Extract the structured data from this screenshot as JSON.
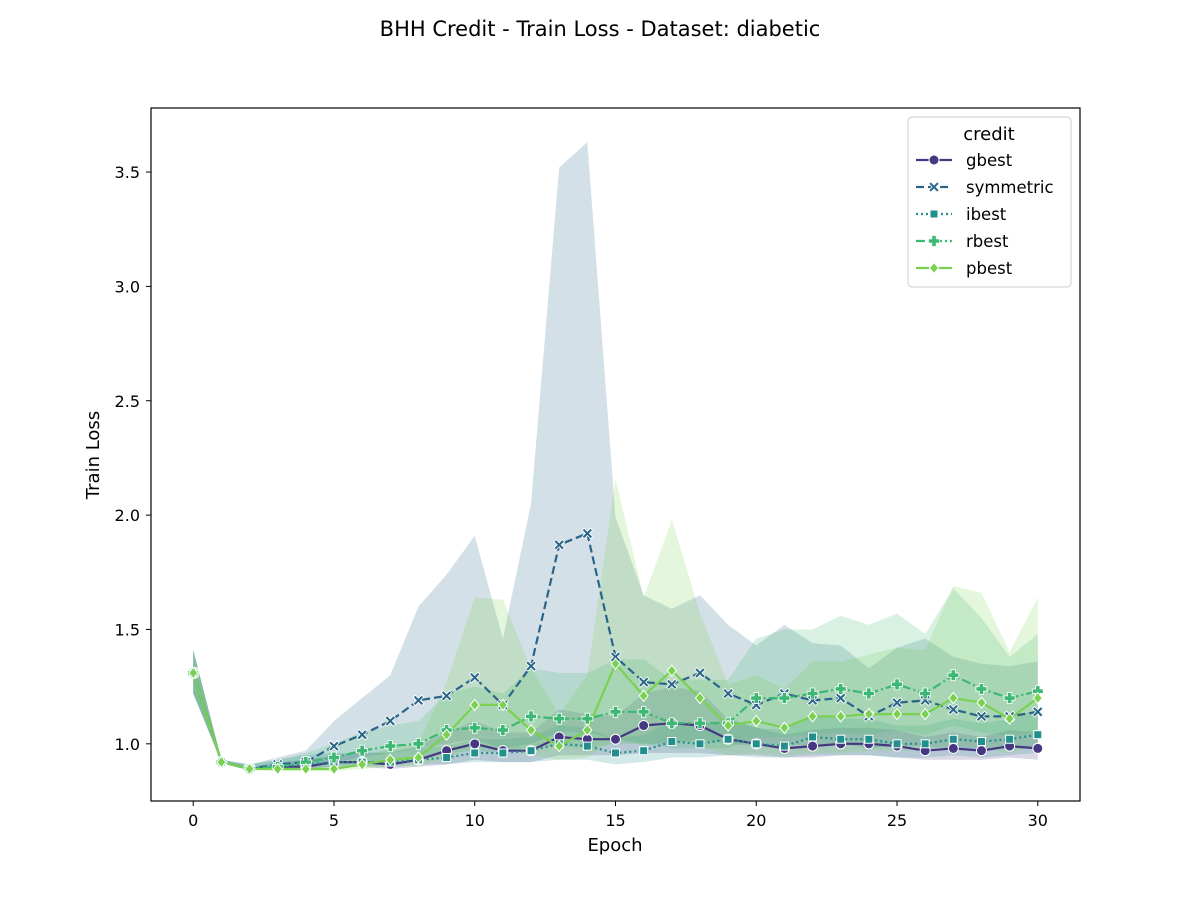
{
  "chart_data": {
    "type": "line",
    "title": "BHH Credit - Train Loss - Dataset: diabetic",
    "xlabel": "Epoch",
    "ylabel": "Train Loss",
    "xlim": [
      -1.5,
      31.5
    ],
    "ylim": [
      0.75,
      3.78
    ],
    "xticks": [
      0,
      5,
      10,
      15,
      20,
      25,
      30
    ],
    "yticks": [
      1.0,
      1.5,
      2.0,
      2.5,
      3.0,
      3.5
    ],
    "xtick_labels": [
      "0",
      "5",
      "10",
      "15",
      "20",
      "25",
      "30"
    ],
    "ytick_labels": [
      "1.0",
      "1.5",
      "2.0",
      "2.5",
      "3.0",
      "3.5"
    ],
    "grid": false,
    "legend": {
      "title": "credit",
      "placement": "top-right"
    },
    "x": [
      0,
      1,
      2,
      3,
      4,
      5,
      6,
      7,
      8,
      9,
      10,
      11,
      12,
      13,
      14,
      15,
      16,
      17,
      18,
      19,
      20,
      21,
      22,
      23,
      24,
      25,
      26,
      27,
      28,
      29,
      30
    ],
    "series": [
      {
        "name": "gbest",
        "color": "#453781",
        "marker": "circle",
        "dash": "solid",
        "values": [
          1.31,
          0.92,
          0.89,
          0.9,
          0.9,
          0.92,
          0.92,
          0.91,
          0.93,
          0.97,
          1.0,
          0.97,
          0.97,
          1.03,
          1.02,
          1.02,
          1.08,
          1.09,
          1.08,
          1.02,
          1.0,
          0.98,
          0.99,
          1.0,
          1.0,
          0.99,
          0.97,
          0.98,
          0.97,
          0.99,
          0.98
        ],
        "lower": [
          1.22,
          0.92,
          0.89,
          0.89,
          0.89,
          0.9,
          0.9,
          0.89,
          0.9,
          0.91,
          0.93,
          0.92,
          0.92,
          0.95,
          0.95,
          0.95,
          0.96,
          0.96,
          0.96,
          0.95,
          0.95,
          0.94,
          0.94,
          0.95,
          0.95,
          0.94,
          0.93,
          0.93,
          0.93,
          0.94,
          0.93
        ],
        "upper": [
          1.41,
          0.93,
          0.9,
          0.92,
          0.93,
          0.95,
          0.96,
          0.96,
          0.99,
          1.05,
          1.1,
          1.05,
          1.05,
          1.15,
          1.13,
          1.12,
          1.22,
          1.25,
          1.23,
          1.11,
          1.07,
          1.04,
          1.06,
          1.07,
          1.07,
          1.06,
          1.03,
          1.05,
          1.03,
          1.06,
          1.05
        ]
      },
      {
        "name": "symmetric",
        "color": "#2a6489",
        "marker": "x",
        "dash": "dashed",
        "values": [
          1.31,
          0.92,
          0.89,
          0.91,
          0.92,
          0.99,
          1.04,
          1.1,
          1.19,
          1.21,
          1.29,
          1.17,
          1.34,
          1.87,
          1.92,
          1.38,
          1.27,
          1.26,
          1.31,
          1.22,
          1.17,
          1.22,
          1.19,
          1.2,
          1.12,
          1.18,
          1.19,
          1.15,
          1.12,
          1.12,
          1.14
        ],
        "lower": [
          1.22,
          0.92,
          0.89,
          0.89,
          0.89,
          0.92,
          0.94,
          0.96,
          0.98,
          1.0,
          1.02,
          0.98,
          1.0,
          1.05,
          1.05,
          1.02,
          1.0,
          1.0,
          1.02,
          1.0,
          0.99,
          1.0,
          0.99,
          1.0,
          0.98,
          0.99,
          0.99,
          0.98,
          0.97,
          0.98,
          0.98
        ],
        "upper": [
          1.41,
          0.93,
          0.91,
          0.94,
          0.97,
          1.1,
          1.2,
          1.3,
          1.6,
          1.74,
          1.91,
          1.46,
          2.05,
          3.52,
          3.63,
          1.99,
          1.65,
          1.59,
          1.65,
          1.52,
          1.43,
          1.52,
          1.44,
          1.43,
          1.33,
          1.42,
          1.46,
          1.38,
          1.35,
          1.34,
          1.36
        ]
      },
      {
        "name": "ibest",
        "color": "#218f8b",
        "marker": "square",
        "dash": "dotted",
        "values": [
          1.31,
          0.92,
          0.89,
          0.9,
          0.91,
          0.92,
          0.92,
          0.92,
          0.93,
          0.94,
          0.96,
          0.96,
          0.97,
          1.0,
          0.99,
          0.96,
          0.97,
          1.01,
          1.0,
          1.02,
          1.0,
          0.99,
          1.03,
          1.02,
          1.02,
          1.0,
          1.0,
          1.02,
          1.01,
          1.02,
          1.04
        ],
        "lower": [
          1.22,
          0.92,
          0.89,
          0.89,
          0.89,
          0.9,
          0.9,
          0.9,
          0.91,
          0.91,
          0.92,
          0.92,
          0.92,
          0.93,
          0.93,
          0.91,
          0.92,
          0.94,
          0.94,
          0.95,
          0.94,
          0.94,
          0.95,
          0.95,
          0.95,
          0.94,
          0.94,
          0.95,
          0.94,
          0.95,
          0.96
        ],
        "upper": [
          1.41,
          0.93,
          0.91,
          0.93,
          0.95,
          0.96,
          0.96,
          0.97,
          0.98,
          0.99,
          1.02,
          1.02,
          1.03,
          1.08,
          1.07,
          1.02,
          1.04,
          1.1,
          1.08,
          1.11,
          1.07,
          1.06,
          1.13,
          1.11,
          1.11,
          1.08,
          1.08,
          1.11,
          1.09,
          1.11,
          1.15
        ]
      },
      {
        "name": "rbest",
        "color": "#3bb872",
        "marker": "plus",
        "dash": "dashdot",
        "values": [
          1.31,
          0.92,
          0.89,
          0.9,
          0.92,
          0.94,
          0.97,
          0.99,
          1.0,
          1.06,
          1.07,
          1.06,
          1.12,
          1.11,
          1.11,
          1.14,
          1.14,
          1.09,
          1.09,
          1.09,
          1.2,
          1.2,
          1.22,
          1.24,
          1.22,
          1.26,
          1.22,
          1.3,
          1.24,
          1.2,
          1.23
        ],
        "lower": [
          1.22,
          0.92,
          0.89,
          0.89,
          0.89,
          0.9,
          0.92,
          0.93,
          0.93,
          0.96,
          0.97,
          0.96,
          0.99,
          0.99,
          0.98,
          1.0,
          1.0,
          0.98,
          0.98,
          0.98,
          1.03,
          1.03,
          1.04,
          1.05,
          1.04,
          1.06,
          1.04,
          1.08,
          1.05,
          1.03,
          1.05
        ],
        "upper": [
          1.41,
          0.93,
          0.91,
          0.93,
          0.96,
          1.0,
          1.05,
          1.08,
          1.1,
          1.22,
          1.25,
          1.22,
          1.33,
          1.31,
          1.31,
          1.37,
          1.37,
          1.28,
          1.28,
          1.28,
          1.46,
          1.5,
          1.5,
          1.56,
          1.52,
          1.57,
          1.48,
          1.68,
          1.55,
          1.38,
          1.48
        ]
      },
      {
        "name": "pbest",
        "color": "#7ad151",
        "marker": "diamond",
        "dash": "solid",
        "values": [
          1.31,
          0.92,
          0.89,
          0.89,
          0.89,
          0.89,
          0.91,
          0.93,
          0.94,
          1.04,
          1.17,
          1.17,
          1.06,
          0.99,
          1.06,
          1.35,
          1.21,
          1.32,
          1.2,
          1.08,
          1.1,
          1.07,
          1.12,
          1.12,
          1.13,
          1.13,
          1.13,
          1.2,
          1.18,
          1.11,
          1.2
        ],
        "lower": [
          1.22,
          0.92,
          0.89,
          0.88,
          0.88,
          0.88,
          0.89,
          0.9,
          0.9,
          0.94,
          0.98,
          0.98,
          0.95,
          0.93,
          0.94,
          1.02,
          0.99,
          1.02,
          0.99,
          0.95,
          0.96,
          0.95,
          0.96,
          0.96,
          0.97,
          0.97,
          0.97,
          0.99,
          0.98,
          0.96,
          0.99
        ],
        "upper": [
          1.41,
          0.93,
          0.9,
          0.91,
          0.91,
          0.91,
          0.94,
          0.98,
          1.0,
          1.27,
          1.64,
          1.63,
          1.33,
          1.13,
          1.3,
          2.16,
          1.64,
          1.98,
          1.57,
          1.26,
          1.3,
          1.24,
          1.36,
          1.36,
          1.39,
          1.42,
          1.41,
          1.69,
          1.66,
          1.4,
          1.64
        ]
      }
    ]
  }
}
